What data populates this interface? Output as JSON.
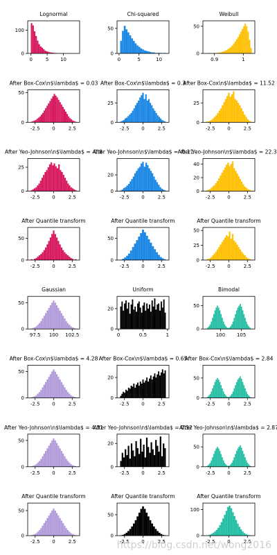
{
  "watermark": "https://blog.csdn.net/wong2016",
  "chart_data": [
    {
      "type": "bar",
      "title": "Lognormal",
      "color": "#d81b60",
      "xticks": [
        0,
        5,
        10
      ],
      "xlim": [
        -1,
        15
      ],
      "yticks": [
        0,
        100
      ],
      "ylim": [
        0,
        140
      ],
      "values": [
        130,
        120,
        95,
        75,
        55,
        40,
        30,
        25,
        18,
        12,
        9,
        7,
        5,
        4,
        3,
        2,
        2,
        1,
        1,
        1,
        0,
        1,
        0,
        0,
        0,
        0,
        1,
        0,
        0,
        0
      ]
    },
    {
      "type": "bar",
      "title": "Chi-squared",
      "color": "#1e88e5",
      "xticks": [
        0,
        5,
        10
      ],
      "xlim": [
        -0.5,
        12.5
      ],
      "yticks": [
        0,
        50
      ],
      "ylim": [
        0,
        65
      ],
      "values": [
        25,
        45,
        55,
        48,
        42,
        36,
        30,
        25,
        20,
        16,
        13,
        10,
        8,
        6,
        5,
        4,
        3,
        2,
        2,
        1,
        1,
        1,
        1,
        0,
        1
      ]
    },
    {
      "type": "bar",
      "title": "Weibull",
      "color": "#ffc107",
      "xticks": [
        0.9,
        1.0
      ],
      "xlim": [
        0.86,
        1.04
      ],
      "yticks": [
        0,
        50
      ],
      "ylim": [
        0,
        60
      ],
      "values": [
        0,
        0,
        1,
        0,
        0,
        1,
        0,
        1,
        1,
        2,
        2,
        3,
        4,
        5,
        6,
        8,
        10,
        12,
        15,
        18,
        22,
        26,
        30,
        35,
        40,
        45,
        50,
        55,
        50,
        40,
        25,
        10
      ]
    },
    {
      "type": "bar",
      "title": "After Box-Cox\\n$\\lambda$ = 0.03",
      "color": "#d81b60",
      "xticks": [
        -2.5,
        0.0,
        2.5
      ],
      "xlim": [
        -3.5,
        3.5
      ],
      "yticks": [
        0,
        50
      ],
      "ylim": [
        0,
        55
      ],
      "values": [
        1,
        2,
        3,
        4,
        6,
        8,
        10,
        13,
        16,
        20,
        24,
        28,
        32,
        36,
        40,
        44,
        48,
        45,
        42,
        38,
        34,
        30,
        26,
        22,
        18,
        14,
        10,
        7,
        5,
        3,
        2,
        1
      ]
    },
    {
      "type": "bar",
      "title": "After Box-Cox\\n$\\lambda$ = 0.3",
      "color": "#1e88e5",
      "xticks": [
        -2.5,
        0.0,
        2.5
      ],
      "xlim": [
        -3.5,
        3.5
      ],
      "yticks": [
        0,
        25
      ],
      "ylim": [
        0,
        42
      ],
      "values": [
        1,
        2,
        3,
        5,
        6,
        8,
        10,
        12,
        15,
        18,
        22,
        25,
        28,
        32,
        35,
        38,
        30,
        36,
        28,
        30,
        25,
        22,
        18,
        15,
        12,
        9,
        7,
        5,
        3,
        2,
        1
      ]
    },
    {
      "type": "bar",
      "title": "After Box-Cox\\n$\\lambda$ = 11.52",
      "color": "#ffc107",
      "xticks": [
        -2.5,
        0.0,
        2.5
      ],
      "xlim": [
        -3.5,
        3.5
      ],
      "yticks": [
        0,
        25
      ],
      "ylim": [
        0,
        42
      ],
      "values": [
        1,
        1,
        2,
        3,
        5,
        7,
        9,
        12,
        15,
        18,
        22,
        26,
        30,
        34,
        38,
        33,
        36,
        40,
        30,
        28,
        25,
        22,
        18,
        14,
        10,
        7,
        4,
        2,
        1
      ]
    },
    {
      "type": "bar",
      "title": "After Yeo-Johnson\\n$\\lambda$ = -0.8",
      "color": "#d81b60",
      "xticks": [
        -2.5,
        0.0,
        2.5
      ],
      "xlim": [
        -3.5,
        3.5
      ],
      "yticks": [
        0,
        25
      ],
      "ylim": [
        0,
        34
      ],
      "values": [
        1,
        2,
        3,
        4,
        6,
        8,
        11,
        14,
        17,
        20,
        22,
        25,
        28,
        30,
        27,
        29,
        26,
        24,
        28,
        22,
        20,
        17,
        14,
        11,
        8,
        6,
        4,
        3,
        2,
        1
      ]
    },
    {
      "type": "bar",
      "title": "After Yeo-Johnson\\n$\\lambda$ = -0.11",
      "color": "#1e88e5",
      "xticks": [
        -2.5,
        0.0,
        2.5
      ],
      "xlim": [
        -3.5,
        3.5
      ],
      "yticks": [
        0,
        20
      ],
      "ylim": [
        0,
        40
      ],
      "values": [
        1,
        2,
        4,
        5,
        7,
        9,
        12,
        15,
        18,
        22,
        25,
        28,
        30,
        34,
        36,
        30,
        35,
        32,
        28,
        25,
        22,
        18,
        14,
        11,
        8,
        5,
        3,
        2,
        1
      ]
    },
    {
      "type": "bar",
      "title": "After Yeo-Johnson\\n$\\lambda$ = 22.34",
      "color": "#ffc107",
      "xticks": [
        -2.5,
        0.0,
        2.5
      ],
      "xlim": [
        -3.5,
        3.5
      ],
      "yticks": [
        0,
        20,
        40
      ],
      "ylim": [
        0,
        48
      ],
      "values": [
        1,
        2,
        3,
        5,
        7,
        9,
        12,
        15,
        19,
        23,
        27,
        31,
        35,
        39,
        42,
        37,
        40,
        44,
        34,
        30,
        26,
        22,
        18,
        14,
        10,
        7,
        5,
        3,
        2,
        1
      ]
    },
    {
      "type": "bar",
      "title": "After Quantile transform",
      "color": "#d81b60",
      "xticks": [
        -2.5,
        0.0,
        2.5
      ],
      "xlim": [
        -3.5,
        3.5
      ],
      "yticks": [
        0,
        50
      ],
      "ylim": [
        0,
        75
      ],
      "values": [
        2,
        1,
        3,
        5,
        8,
        11,
        14,
        18,
        23,
        29,
        36,
        44,
        52,
        60,
        68,
        60,
        52,
        44,
        36,
        29,
        23,
        18,
        14,
        11,
        8,
        5,
        3,
        1,
        2
      ]
    },
    {
      "type": "bar",
      "title": "After Quantile transform",
      "color": "#1e88e5",
      "xticks": [
        -2.5,
        0.0,
        2.5
      ],
      "xlim": [
        -3.5,
        3.5
      ],
      "yticks": [
        0,
        50
      ],
      "ylim": [
        0,
        75
      ],
      "values": [
        1,
        3,
        6,
        10,
        15,
        22,
        30,
        38,
        46,
        54,
        62,
        70,
        64,
        56,
        48,
        40,
        32,
        25,
        18,
        12,
        7,
        4,
        2
      ]
    },
    {
      "type": "bar",
      "title": "After Quantile transform",
      "color": "#ffc107",
      "xticks": [
        -2.5,
        0.0,
        2.5
      ],
      "xlim": [
        -3.5,
        3.5
      ],
      "yticks": [
        0,
        25,
        50
      ],
      "ylim": [
        0,
        55
      ],
      "values": [
        1,
        2,
        3,
        5,
        8,
        11,
        14,
        18,
        22,
        26,
        30,
        34,
        38,
        42,
        40,
        48,
        36,
        44,
        33,
        30,
        26,
        22,
        18,
        14,
        11,
        8,
        5,
        3,
        2,
        1
      ]
    },
    {
      "type": "bar",
      "title": "Gaussian",
      "color": "#b39ddb",
      "xticks": [
        97.5,
        100.0,
        102.5
      ],
      "xlim": [
        96.5,
        103.5
      ],
      "yticks": [
        0,
        50
      ],
      "ylim": [
        0,
        62
      ],
      "values": [
        1,
        2,
        3,
        5,
        8,
        11,
        15,
        20,
        25,
        30,
        35,
        40,
        45,
        50,
        54,
        50,
        45,
        40,
        35,
        30,
        25,
        20,
        15,
        11,
        8,
        5,
        3,
        2,
        1
      ]
    },
    {
      "type": "bar",
      "title": "Uniform",
      "color": "#000000",
      "xticks": [
        0.0,
        0.5,
        1.0
      ],
      "xlim": [
        -0.03,
        1.03
      ],
      "yticks": [
        0,
        20
      ],
      "ylim": [
        0,
        32
      ],
      "values": [
        22,
        27,
        18,
        25,
        28,
        20,
        26,
        15,
        24,
        29,
        19,
        22,
        17,
        25,
        27,
        21,
        16,
        23,
        26,
        18,
        25,
        20,
        24,
        17,
        28,
        22,
        30,
        19,
        24,
        25,
        18,
        27,
        21,
        29,
        16
      ]
    },
    {
      "type": "bar",
      "title": "Bimodal",
      "color": "#26bfa5",
      "xticks": [
        100,
        105
      ],
      "xlim": [
        95.8,
        108.2
      ],
      "yticks": [
        0,
        50
      ],
      "ylim": [
        0,
        70
      ],
      "values": [
        1,
        3,
        6,
        10,
        16,
        24,
        32,
        40,
        46,
        50,
        46,
        40,
        32,
        24,
        16,
        10,
        6,
        3,
        2,
        3,
        6,
        10,
        16,
        24,
        32,
        40,
        46,
        50,
        54,
        48,
        40,
        32,
        24,
        16,
        10,
        6,
        3,
        1
      ]
    },
    {
      "type": "bar",
      "title": "After Box-Cox\\n$\\lambda$ = 4.28",
      "color": "#b39ddb",
      "xticks": [
        -2.5,
        0.0,
        2.5
      ],
      "xlim": [
        -3.5,
        3.5
      ],
      "yticks": [
        0,
        50
      ],
      "ylim": [
        0,
        62
      ],
      "values": [
        1,
        2,
        3,
        5,
        8,
        11,
        15,
        20,
        25,
        30,
        35,
        40,
        45,
        50,
        54,
        50,
        45,
        40,
        35,
        30,
        25,
        20,
        15,
        11,
        8,
        5,
        3,
        2,
        1
      ]
    },
    {
      "type": "bar",
      "title": "After Box-Cox\\n$\\lambda$ = 0.65",
      "color": "#000000",
      "xticks": [
        -2.5,
        0.0,
        2.5
      ],
      "xlim": [
        -3.5,
        3.5
      ],
      "yticks": [
        0,
        20
      ],
      "ylim": [
        0,
        32
      ],
      "values": [
        2,
        4,
        6,
        5,
        8,
        7,
        10,
        9,
        12,
        11,
        14,
        10,
        13,
        15,
        12,
        16,
        14,
        18,
        15,
        17,
        20,
        16,
        19,
        22,
        18,
        21,
        24,
        20,
        23,
        26,
        22,
        25,
        28,
        24,
        27
      ]
    },
    {
      "type": "bar",
      "title": "After Box-Cox\\n$\\lambda$ = 2.84",
      "color": "#26bfa5",
      "xticks": [
        -2.5,
        0.0,
        2.5
      ],
      "xlim": [
        -3.5,
        3.5
      ],
      "yticks": [
        0,
        50
      ],
      "ylim": [
        0,
        82
      ],
      "values": [
        1,
        3,
        6,
        10,
        16,
        24,
        32,
        40,
        46,
        50,
        46,
        40,
        32,
        24,
        16,
        10,
        6,
        3,
        2,
        3,
        6,
        10,
        16,
        24,
        32,
        40,
        46,
        50,
        54,
        48,
        40,
        32,
        24,
        16,
        10,
        6,
        3,
        1
      ]
    },
    {
      "type": "bar",
      "title": "After Yeo-Johnson\\n$\\lambda$ = 4.31",
      "color": "#b39ddb",
      "xticks": [
        -2.5,
        0.0,
        2.5
      ],
      "xlim": [
        -3.5,
        3.5
      ],
      "yticks": [
        0,
        50
      ],
      "ylim": [
        0,
        62
      ],
      "values": [
        1,
        2,
        3,
        5,
        8,
        11,
        15,
        20,
        25,
        30,
        35,
        40,
        45,
        50,
        54,
        50,
        45,
        40,
        35,
        30,
        25,
        20,
        15,
        11,
        8,
        5,
        3,
        2,
        1
      ]
    },
    {
      "type": "bar",
      "title": "After Yeo-Johnson\\n$\\lambda$ = 0.52",
      "color": "#000000",
      "xticks": [
        -2.5,
        0.0,
        2.5
      ],
      "xlim": [
        -3.5,
        3.5
      ],
      "yticks": [
        0,
        20
      ],
      "ylim": [
        0,
        28
      ],
      "values": [
        5,
        12,
        8,
        15,
        10,
        18,
        7,
        20,
        14,
        9,
        22,
        16,
        11,
        24,
        13,
        19,
        8,
        25,
        17,
        12,
        21,
        15,
        10,
        23,
        18,
        13,
        26,
        9,
        20,
        16
      ]
    },
    {
      "type": "bar",
      "title": "After Yeo-Johnson\\n$\\lambda$ = 2.87",
      "color": "#26bfa5",
      "xticks": [
        -2.5,
        0.0,
        2.5
      ],
      "xlim": [
        -3.5,
        3.5
      ],
      "yticks": [
        0,
        50
      ],
      "ylim": [
        0,
        82
      ],
      "values": [
        1,
        3,
        6,
        10,
        16,
        24,
        32,
        40,
        46,
        50,
        46,
        40,
        32,
        24,
        16,
        10,
        6,
        3,
        2,
        3,
        6,
        10,
        16,
        24,
        32,
        40,
        46,
        50,
        54,
        48,
        40,
        32,
        24,
        16,
        10,
        6,
        3,
        1
      ]
    },
    {
      "type": "bar",
      "title": "After Quantile transform",
      "color": "#b39ddb",
      "xticks": [
        -2.5,
        0.0,
        2.5
      ],
      "xlim": [
        -3.5,
        3.5
      ],
      "yticks": [
        0,
        50
      ],
      "ylim": [
        0,
        65
      ],
      "values": [
        1,
        2,
        3,
        5,
        8,
        11,
        15,
        20,
        25,
        30,
        35,
        40,
        45,
        50,
        54,
        50,
        45,
        40,
        35,
        30,
        25,
        20,
        15,
        11,
        8,
        5,
        3,
        2,
        1
      ]
    },
    {
      "type": "bar",
      "title": "After Quantile transform",
      "color": "#000000",
      "xticks": [
        -2.5,
        0.0,
        2.5
      ],
      "xlim": [
        -3.5,
        3.5
      ],
      "yticks": [
        0,
        50
      ],
      "ylim": [
        0,
        78
      ],
      "values": [
        1,
        2,
        4,
        7,
        11,
        16,
        22,
        29,
        37,
        46,
        55,
        64,
        70,
        64,
        55,
        46,
        37,
        29,
        22,
        16,
        11,
        7,
        4,
        2,
        1
      ]
    },
    {
      "type": "bar",
      "title": "After Quantile transform",
      "color": "#26bfa5",
      "xticks": [
        -2.5,
        0.0,
        2.5
      ],
      "xlim": [
        -3.5,
        3.5
      ],
      "yticks": [
        0,
        100
      ],
      "ylim": [
        0,
        125
      ],
      "values": [
        1,
        2,
        4,
        7,
        11,
        16,
        22,
        30,
        40,
        52,
        66,
        80,
        95,
        110,
        115,
        105,
        90,
        75,
        60,
        46,
        34,
        24,
        16,
        10,
        6,
        3,
        2,
        1
      ]
    }
  ]
}
